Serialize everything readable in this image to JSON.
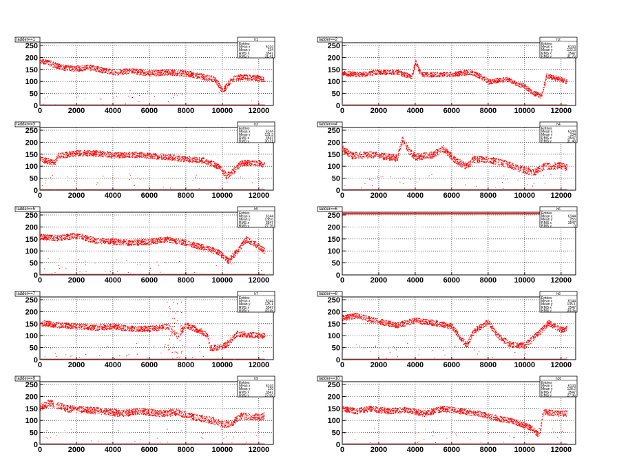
{
  "footer_text": "",
  "chart_data": [
    {
      "type": "scatter",
      "title": "ladder==1",
      "ylim": [
        0,
        250
      ],
      "xlim": [
        0,
        12800
      ],
      "x_ticks": [
        "0",
        "2000",
        "4000",
        "6000",
        "8000",
        "10000",
        "12000"
      ],
      "y_ticks": [
        "0",
        "50",
        "100",
        "150",
        "200",
        "250"
      ],
      "stats": {
        "name": "h1",
        "entries": "",
        "mean_x": "6144",
        "mean_y": "134",
        "rms_x": "3547",
        "rms_y": "31.41"
      },
      "profile": [
        [
          0,
          190
        ],
        [
          600,
          175
        ],
        [
          1200,
          160
        ],
        [
          2000,
          155
        ],
        [
          2800,
          160
        ],
        [
          3500,
          145
        ],
        [
          4200,
          140
        ],
        [
          5000,
          145
        ],
        [
          6000,
          135
        ],
        [
          7000,
          140
        ],
        [
          8000,
          135
        ],
        [
          9000,
          120
        ],
        [
          9600,
          110
        ],
        [
          10000,
          60
        ],
        [
          10500,
          110
        ],
        [
          11000,
          120
        ],
        [
          12000,
          115
        ],
        [
          12300,
          110
        ]
      ],
      "spread": 12,
      "stray": true
    },
    {
      "type": "scatter",
      "title": "ladder==2",
      "ylim": [
        0,
        250
      ],
      "xlim": [
        0,
        12800
      ],
      "x_ticks": [
        "0",
        "2000",
        "4000",
        "6000",
        "8000",
        "10000",
        "12000"
      ],
      "y_ticks": [
        "0",
        "50",
        "100",
        "150",
        "200",
        "250"
      ],
      "stats": {
        "name": "h2",
        "entries": "",
        "mean_x": "6144",
        "mean_y": "122.3",
        "rms_x": "3547",
        "rms_y": "31.76"
      },
      "profile": [
        [
          0,
          135
        ],
        [
          1000,
          130
        ],
        [
          2000,
          140
        ],
        [
          3000,
          140
        ],
        [
          3800,
          120
        ],
        [
          4000,
          185
        ],
        [
          4300,
          130
        ],
        [
          5000,
          130
        ],
        [
          6000,
          130
        ],
        [
          7000,
          140
        ],
        [
          7500,
          125
        ],
        [
          8000,
          100
        ],
        [
          9000,
          110
        ],
        [
          10000,
          80
        ],
        [
          10400,
          55
        ],
        [
          10900,
          40
        ],
        [
          11200,
          125
        ],
        [
          12000,
          110
        ],
        [
          12300,
          100
        ]
      ],
      "spread": 10,
      "stray": false
    },
    {
      "type": "scatter",
      "title": "ladder==3",
      "ylim": [
        0,
        250
      ],
      "xlim": [
        0,
        12800
      ],
      "x_ticks": [
        "0",
        "2000",
        "4000",
        "6000",
        "8000",
        "10000",
        "12000"
      ],
      "y_ticks": [
        "0",
        "50",
        "100",
        "150",
        "200",
        "250"
      ],
      "stats": {
        "name": "h3",
        "entries": "",
        "mean_x": "6144",
        "mean_y": "131.3",
        "rms_x": "3547",
        "rms_y": "30.21"
      },
      "profile": [
        [
          0,
          130
        ],
        [
          800,
          115
        ],
        [
          1000,
          145
        ],
        [
          2000,
          155
        ],
        [
          3000,
          155
        ],
        [
          3800,
          150
        ],
        [
          4000,
          145
        ],
        [
          5000,
          150
        ],
        [
          6000,
          145
        ],
        [
          7000,
          140
        ],
        [
          8000,
          130
        ],
        [
          9000,
          125
        ],
        [
          9800,
          100
        ],
        [
          10200,
          60
        ],
        [
          10600,
          80
        ],
        [
          11000,
          115
        ],
        [
          12000,
          115
        ],
        [
          12300,
          105
        ]
      ],
      "spread": 12,
      "stray": true
    },
    {
      "type": "scatter",
      "title": "ladder==4",
      "ylim": [
        0,
        250
      ],
      "xlim": [
        0,
        12800
      ],
      "x_ticks": [
        "0",
        "2000",
        "4000",
        "6000",
        "8000",
        "10000",
        "12000"
      ],
      "y_ticks": [
        "0",
        "50",
        "100",
        "150",
        "200",
        "250"
      ],
      "stats": {
        "name": "h4",
        "entries": "",
        "mean_x": "6144",
        "mean_y": "134",
        "rms_x": "3547",
        "rms_y": "31.48"
      },
      "profile": [
        [
          0,
          175
        ],
        [
          500,
          145
        ],
        [
          1500,
          150
        ],
        [
          2500,
          140
        ],
        [
          3000,
          135
        ],
        [
          3300,
          215
        ],
        [
          3600,
          170
        ],
        [
          4000,
          140
        ],
        [
          5000,
          150
        ],
        [
          5500,
          175
        ],
        [
          6200,
          125
        ],
        [
          6800,
          100
        ],
        [
          7200,
          130
        ],
        [
          8000,
          130
        ],
        [
          9000,
          110
        ],
        [
          10000,
          85
        ],
        [
          10500,
          75
        ],
        [
          11000,
          100
        ],
        [
          12000,
          105
        ],
        [
          12300,
          95
        ]
      ],
      "spread": 14,
      "stray": true
    },
    {
      "type": "scatter",
      "title": "ladder==5",
      "ylim": [
        0,
        250
      ],
      "xlim": [
        0,
        12800
      ],
      "x_ticks": [
        "0",
        "2000",
        "4000",
        "6000",
        "8000",
        "10000",
        "12000"
      ],
      "y_ticks": [
        "0",
        "50",
        "100",
        "150",
        "200",
        "250"
      ],
      "stats": {
        "name": "h5",
        "entries": "",
        "mean_x": "6144",
        "mean_y": "138.6",
        "rms_x": "3547",
        "rms_y": "27.76"
      },
      "profile": [
        [
          0,
          160
        ],
        [
          1000,
          155
        ],
        [
          2000,
          165
        ],
        [
          3000,
          145
        ],
        [
          4000,
          140
        ],
        [
          5000,
          135
        ],
        [
          6000,
          140
        ],
        [
          7000,
          150
        ],
        [
          8000,
          135
        ],
        [
          9000,
          115
        ],
        [
          9800,
          95
        ],
        [
          10300,
          60
        ],
        [
          10800,
          100
        ],
        [
          11300,
          150
        ],
        [
          12000,
          120
        ],
        [
          12300,
          100
        ]
      ],
      "spread": 12,
      "stray": true
    },
    {
      "type": "scatter",
      "title": "ladder==6",
      "ylim": [
        0,
        250
      ],
      "xlim": [
        0,
        12800
      ],
      "x_ticks": [
        "0",
        "2000",
        "4000",
        "6000",
        "8000",
        "10000",
        "12000"
      ],
      "y_ticks": [
        "0",
        "50",
        "100",
        "150",
        "200",
        "250"
      ],
      "stats": {
        "name": "h6",
        "entries": "",
        "mean_x": "6144",
        "mean_y": "255",
        "rms_x": "3547",
        "rms_y": "0"
      },
      "profile": [
        [
          0,
          255
        ],
        [
          12300,
          255
        ]
      ],
      "spread": 0,
      "stray": false,
      "flat_line": 255
    },
    {
      "type": "scatter",
      "title": "ladder==7",
      "ylim": [
        0,
        250
      ],
      "xlim": [
        0,
        12800
      ],
      "x_ticks": [
        "0",
        "2000",
        "4000",
        "6000",
        "8000",
        "10000",
        "12000"
      ],
      "y_ticks": [
        "0",
        "50",
        "100",
        "150",
        "200",
        "250"
      ],
      "stats": {
        "name": "h7",
        "entries": "",
        "mean_x": "6144",
        "mean_y": "125.1",
        "rms_x": "3547",
        "rms_y": "34.35"
      },
      "profile": [
        [
          0,
          155
        ],
        [
          1000,
          145
        ],
        [
          2000,
          140
        ],
        [
          3000,
          135
        ],
        [
          4000,
          140
        ],
        [
          5000,
          130
        ],
        [
          6000,
          130
        ],
        [
          7000,
          140
        ],
        [
          7500,
          100
        ],
        [
          8000,
          145
        ],
        [
          8800,
          120
        ],
        [
          9200,
          100
        ],
        [
          9300,
          50
        ],
        [
          10000,
          55
        ],
        [
          10300,
          70
        ],
        [
          10800,
          110
        ],
        [
          11500,
          105
        ],
        [
          12300,
          100
        ]
      ],
      "spread": 12,
      "stray": true,
      "burst": [
        6800,
        7800
      ]
    },
    {
      "type": "scatter",
      "title": "ladder==8",
      "ylim": [
        0,
        250
      ],
      "xlim": [
        0,
        12800
      ],
      "x_ticks": [
        "0",
        "2000",
        "4000",
        "6000",
        "8000",
        "10000",
        "12000"
      ],
      "y_ticks": [
        "0",
        "50",
        "100",
        "150",
        "200",
        "250"
      ],
      "stats": {
        "name": "h8",
        "entries": "",
        "mean_x": "6144",
        "mean_y": "135.1",
        "rms_x": "3547",
        "rms_y": "34.05"
      },
      "profile": [
        [
          0,
          175
        ],
        [
          800,
          185
        ],
        [
          2000,
          160
        ],
        [
          3000,
          145
        ],
        [
          4000,
          165
        ],
        [
          5000,
          155
        ],
        [
          6000,
          140
        ],
        [
          6800,
          60
        ],
        [
          7200,
          120
        ],
        [
          8000,
          160
        ],
        [
          8500,
          100
        ],
        [
          9200,
          65
        ],
        [
          10000,
          60
        ],
        [
          10300,
          80
        ],
        [
          10800,
          115
        ],
        [
          11300,
          155
        ],
        [
          12000,
          125
        ],
        [
          12300,
          130
        ]
      ],
      "spread": 12,
      "stray": true
    },
    {
      "type": "scatter",
      "title": "ladder==9",
      "ylim": [
        0,
        250
      ],
      "xlim": [
        0,
        12800
      ],
      "x_ticks": [
        "0",
        "2000",
        "4000",
        "6000",
        "8000",
        "10000",
        "12000"
      ],
      "y_ticks": [
        "0",
        "50",
        "100",
        "150",
        "200",
        "250"
      ],
      "stats": {
        "name": "h9",
        "entries": "",
        "mean_x": "6144",
        "mean_y": "129",
        "rms_x": "3547",
        "rms_y": "27.69"
      },
      "profile": [
        [
          0,
          155
        ],
        [
          500,
          175
        ],
        [
          1500,
          150
        ],
        [
          2500,
          145
        ],
        [
          3500,
          140
        ],
        [
          4500,
          130
        ],
        [
          5500,
          140
        ],
        [
          6500,
          130
        ],
        [
          7500,
          135
        ],
        [
          8500,
          115
        ],
        [
          9500,
          100
        ],
        [
          10000,
          85
        ],
        [
          10500,
          90
        ],
        [
          11000,
          120
        ],
        [
          12000,
          115
        ],
        [
          12300,
          120
        ]
      ],
      "spread": 14,
      "stray": true
    },
    {
      "type": "scatter",
      "title": "ladder==10",
      "ylim": [
        0,
        250
      ],
      "xlim": [
        0,
        12800
      ],
      "x_ticks": [
        "0",
        "2000",
        "4000",
        "6000",
        "8000",
        "10000",
        "12000"
      ],
      "y_ticks": [
        "0",
        "50",
        "100",
        "150",
        "200",
        "250"
      ],
      "stats": {
        "name": "h10",
        "entries": "",
        "mean_x": "6144",
        "mean_y": "128.2",
        "rms_x": "3547",
        "rms_y": "27.96"
      },
      "profile": [
        [
          0,
          150
        ],
        [
          800,
          140
        ],
        [
          1500,
          150
        ],
        [
          2500,
          140
        ],
        [
          3500,
          145
        ],
        [
          4500,
          130
        ],
        [
          5500,
          150
        ],
        [
          6500,
          140
        ],
        [
          7500,
          130
        ],
        [
          8500,
          110
        ],
        [
          9500,
          95
        ],
        [
          10200,
          75
        ],
        [
          10800,
          40
        ],
        [
          11000,
          135
        ],
        [
          12000,
          130
        ],
        [
          12300,
          130
        ]
      ],
      "spread": 12,
      "stray": true
    }
  ]
}
